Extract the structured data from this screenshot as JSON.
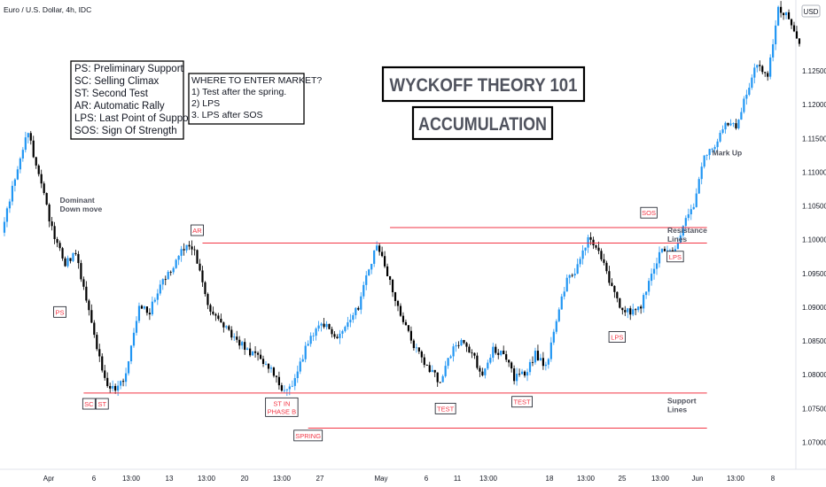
{
  "header": {
    "symbol_title": "Euro / U.S. Dollar, 4h, IDC",
    "currency": "USD"
  },
  "legend_box": {
    "lines": [
      "PS: Preliminary Support",
      "SC: Selling Climax",
      "ST: Second Test",
      "AR: Automatic Rally",
      "LPS: Last Point of Support",
      "SOS: Sign Of Strength"
    ]
  },
  "entry_box": {
    "lines": [
      "WHERE TO ENTER MARKET?",
      "1) Test after the spring.",
      "2) LPS",
      "3. LPS after SOS"
    ]
  },
  "title_box": {
    "title": "WYCKOFF THEORY 101",
    "subtitle": "ACCUMULATION"
  },
  "chart_data": {
    "type": "candlestick",
    "symbol": "EURUSD",
    "timeframe": "4h",
    "ylim": [
      1.066,
      1.1355
    ],
    "y_ticks": [
      "1.12500",
      "1.12000",
      "1.11500",
      "1.11000",
      "1.10500",
      "1.10000",
      "1.09500",
      "1.09000",
      "1.08500",
      "1.08000",
      "1.07500",
      "1.07000"
    ],
    "x_ticks": [
      "Apr",
      "6",
      "13:00",
      "13",
      "13:00",
      "20",
      "13:00",
      "27",
      "May",
      "6",
      "11",
      "13:00",
      "18",
      "13:00",
      "25",
      "13:00",
      "Jun",
      "13:00",
      "8"
    ],
    "colors": {
      "up": "#2196f3",
      "down": "#000000",
      "level_line": "#f23645",
      "label_text": "#f23645"
    },
    "path_anchors": [
      [
        0,
        1.101
      ],
      [
        5,
        1.109
      ],
      [
        10,
        1.116
      ],
      [
        15,
        1.108
      ],
      [
        20,
        1.1
      ],
      [
        24,
        1.0965
      ],
      [
        28,
        1.098
      ],
      [
        32,
        1.091
      ],
      [
        35,
        1.086
      ],
      [
        39,
        1.079
      ],
      [
        43,
        1.078
      ],
      [
        47,
        1.08
      ],
      [
        52,
        1.09
      ],
      [
        56,
        1.0895
      ],
      [
        60,
        1.093
      ],
      [
        64,
        1.0955
      ],
      [
        68,
        1.0985
      ],
      [
        72,
        1.099
      ],
      [
        75,
        1.096
      ],
      [
        79,
        1.089
      ],
      [
        83,
        1.0875
      ],
      [
        87,
        1.086
      ],
      [
        91,
        1.0845
      ],
      [
        95,
        1.083
      ],
      [
        99,
        1.082
      ],
      [
        103,
        1.08
      ],
      [
        107,
        1.0775
      ],
      [
        111,
        1.079
      ],
      [
        115,
        1.084
      ],
      [
        119,
        1.087
      ],
      [
        123,
        1.087
      ],
      [
        127,
        1.0855
      ],
      [
        131,
        1.0875
      ],
      [
        135,
        1.09
      ],
      [
        139,
        1.096
      ],
      [
        142,
        1.099
      ],
      [
        146,
        1.095
      ],
      [
        150,
        1.09
      ],
      [
        154,
        1.086
      ],
      [
        158,
        1.083
      ],
      [
        162,
        1.0805
      ],
      [
        166,
        1.079
      ],
      [
        170,
        1.083
      ],
      [
        174,
        1.0855
      ],
      [
        178,
        1.083
      ],
      [
        182,
        1.08
      ],
      [
        186,
        1.084
      ],
      [
        190,
        1.083
      ],
      [
        194,
        1.0795
      ],
      [
        198,
        1.08
      ],
      [
        202,
        1.083
      ],
      [
        206,
        1.081
      ],
      [
        210,
        1.088
      ],
      [
        214,
        1.094
      ],
      [
        218,
        1.096
      ],
      [
        222,
        1.1
      ],
      [
        226,
        1.098
      ],
      [
        230,
        1.094
      ],
      [
        234,
        1.09
      ],
      [
        238,
        1.089
      ],
      [
        242,
        1.09
      ],
      [
        246,
        1.095
      ],
      [
        250,
        1.099
      ],
      [
        254,
        1.098
      ],
      [
        258,
        1.102
      ],
      [
        262,
        1.105
      ],
      [
        266,
        1.112
      ],
      [
        270,
        1.114
      ],
      [
        274,
        1.1175
      ],
      [
        278,
        1.1165
      ],
      [
        282,
        1.122
      ],
      [
        286,
        1.126
      ],
      [
        290,
        1.124
      ],
      [
        294,
        1.134
      ],
      [
        298,
        1.133
      ],
      [
        302,
        1.129
      ]
    ],
    "levels": [
      {
        "name": "resistance-upper",
        "y": 1.1018,
        "x_from": 147,
        "x_to": 267
      },
      {
        "name": "resistance-lower",
        "y": 1.0995,
        "x_from": 76,
        "x_to": 267
      },
      {
        "name": "support-upper",
        "y": 1.0773,
        "x_from": 31,
        "x_to": 267
      },
      {
        "name": "support-lower",
        "y": 1.0721,
        "x_from": 116,
        "x_to": 267
      }
    ],
    "labels": [
      {
        "text": "PS",
        "x": 22,
        "y": 1.0893
      },
      {
        "text": "SC",
        "x": 33,
        "y": 1.0757
      },
      {
        "text": "ST",
        "x": 38,
        "y": 1.0757
      },
      {
        "text": "AR",
        "x": 74,
        "y": 1.1014
      },
      {
        "text": "ST IN PHASE B",
        "x": 106,
        "y": 1.0752
      },
      {
        "text": "SPRING",
        "x": 116,
        "y": 1.071
      },
      {
        "text": "TEST",
        "x": 168,
        "y": 1.075
      },
      {
        "text": "TEST",
        "x": 197,
        "y": 1.076
      },
      {
        "text": "LPS",
        "x": 233,
        "y": 1.0856
      },
      {
        "text": "SOS",
        "x": 245,
        "y": 1.104
      },
      {
        "text": "LPS",
        "x": 255,
        "y": 1.0975
      }
    ],
    "annotations": [
      {
        "text": "Dominant Down move",
        "x": 22,
        "y": 1.1055
      },
      {
        "text": "Resistance Lines",
        "x": 252,
        "y": 1.101
      },
      {
        "text": "Support Lines",
        "x": 252,
        "y": 1.0758
      },
      {
        "text": "Mark Up",
        "x": 269,
        "y": 1.1125
      }
    ]
  }
}
